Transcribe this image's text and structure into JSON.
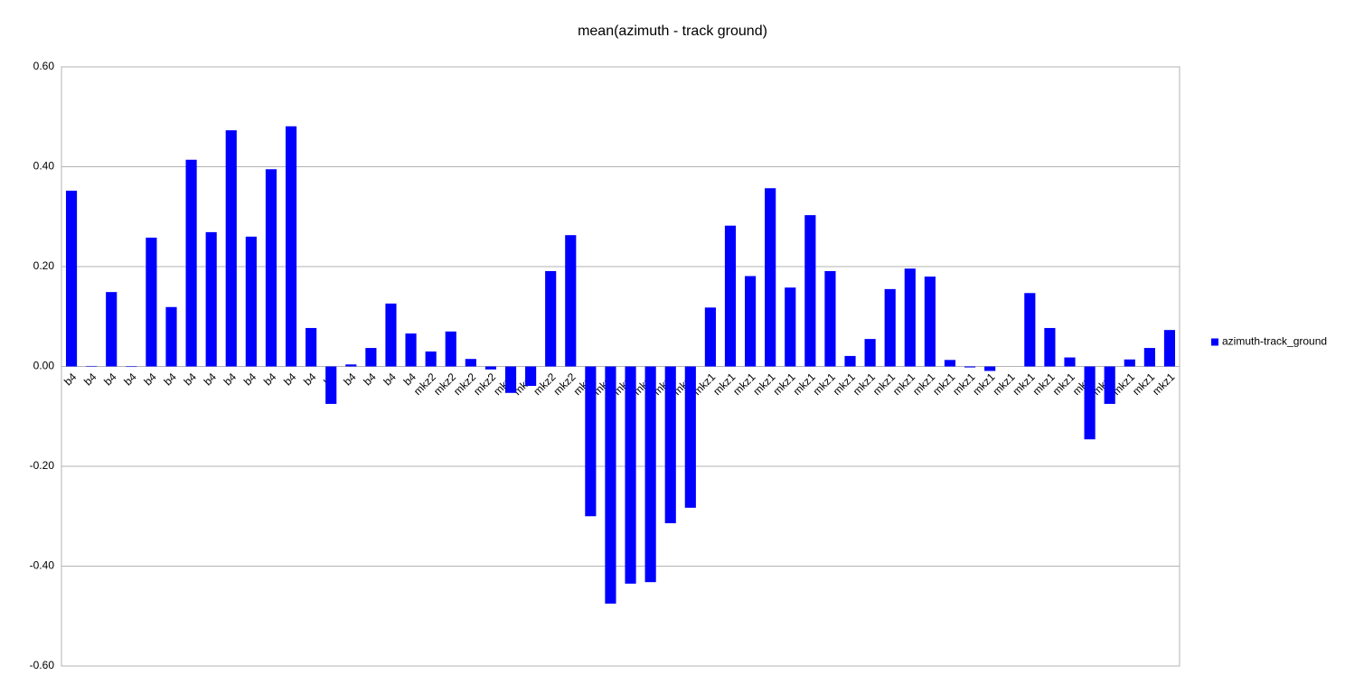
{
  "chart_data": {
    "type": "bar",
    "title": "mean(azimuth - track ground)",
    "categories": [
      "b4",
      "b4",
      "b4",
      "b4",
      "b4",
      "b4",
      "b4",
      "b4",
      "b4",
      "b4",
      "b4",
      "b4",
      "b4",
      "b4",
      "b4",
      "b4",
      "b4",
      "b4",
      "mkz2",
      "mkz2",
      "mkz2",
      "mkz2",
      "mkz2",
      "mkz2",
      "mkz2",
      "mkz2",
      "mkz2",
      "mkz2",
      "mkz2",
      "mkz2",
      "mkz2",
      "mkz2",
      "mkz1",
      "mkz1",
      "mkz1",
      "mkz1",
      "mkz1",
      "mkz1",
      "mkz1",
      "mkz1",
      "mkz1",
      "mkz1",
      "mkz1",
      "mkz1",
      "mkz1",
      "mkz1",
      "mkz1",
      "mkz1",
      "mkz1",
      "mkz1",
      "mkz1",
      "mkz1",
      "mkz1",
      "mkz1",
      "mkz1",
      "mkz1"
    ],
    "series": [
      {
        "name": "azimuth-track_ground",
        "color": "#0000ff",
        "values": [
          0.352,
          0.001,
          0.149,
          -0.001,
          0.258,
          0.119,
          0.414,
          0.269,
          0.473,
          0.26,
          0.395,
          0.481,
          0.077,
          -0.075,
          0.004,
          0.037,
          0.126,
          0.066,
          0.03,
          0.07,
          0.015,
          -0.006,
          -0.053,
          -0.039,
          0.191,
          0.263,
          -0.3,
          -0.475,
          -0.435,
          -0.432,
          -0.314,
          -0.283,
          0.118,
          0.282,
          0.181,
          0.357,
          0.158,
          0.303,
          0.191,
          0.021,
          0.055,
          0.155,
          0.196,
          0.18,
          0.013,
          -0.002,
          -0.009,
          0,
          0.147,
          0.077,
          0.018,
          -0.146,
          -0.075,
          0.014,
          0.037,
          0.073
        ]
      }
    ],
    "ylim": [
      -0.6,
      0.6
    ],
    "yticks": [
      {
        "value": -0.6,
        "label": "-0.60"
      },
      {
        "value": -0.4,
        "label": "-0.40"
      },
      {
        "value": -0.2,
        "label": "-0.20"
      },
      {
        "value": 0,
        "label": "0.00"
      },
      {
        "value": 0.2,
        "label": "0.20"
      },
      {
        "value": 0.4,
        "label": "0.40"
      },
      {
        "value": 0.6,
        "label": "0.60"
      }
    ],
    "grid": true,
    "legend": "right"
  }
}
